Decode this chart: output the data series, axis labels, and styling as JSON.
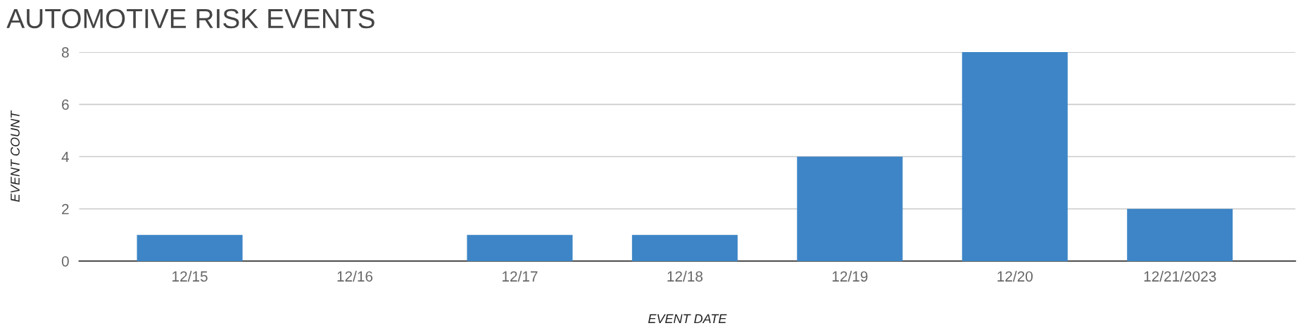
{
  "chart_data": {
    "type": "bar",
    "title": "AUTOMOTIVE RISK EVENTS",
    "xlabel": "EVENT DATE",
    "ylabel": "EVENT COUNT",
    "categories": [
      "12/15",
      "12/16",
      "12/17",
      "12/18",
      "12/19",
      "12/20",
      "12/21/2023"
    ],
    "values": [
      1,
      0,
      1,
      1,
      4,
      8,
      2
    ],
    "color": "#3d85c6",
    "ylim": [
      0,
      8
    ],
    "yticks": [
      0,
      2,
      4,
      6,
      8
    ],
    "grid": "y",
    "legend": false
  }
}
